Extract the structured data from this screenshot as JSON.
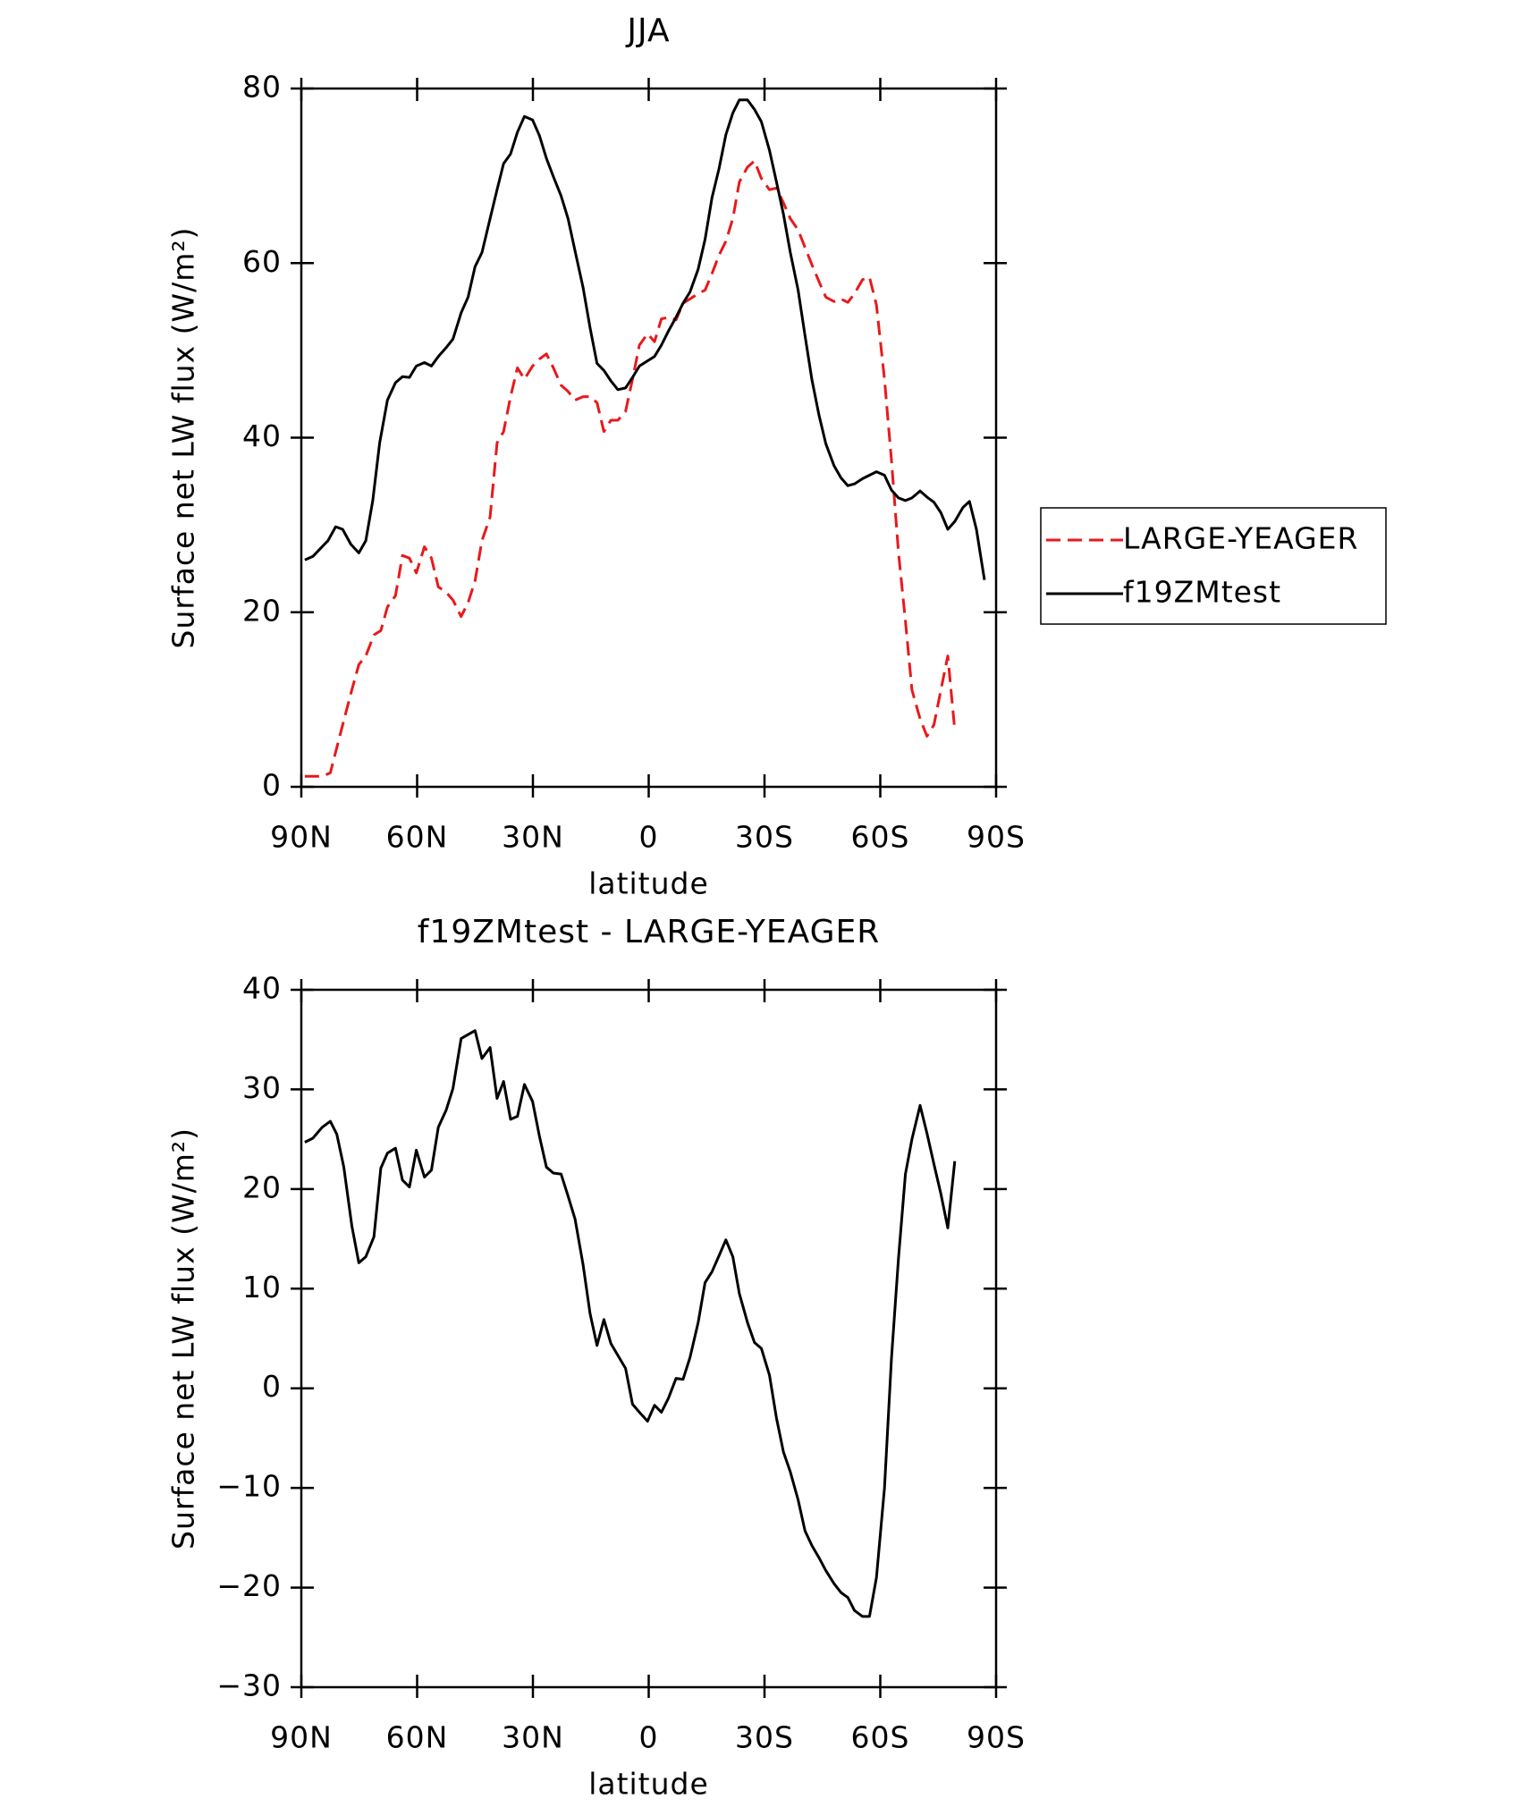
{
  "chart_data": [
    {
      "type": "line",
      "title": "JJA",
      "x_label": "latitude",
      "y_label": "Surface net LW flux (W/m²)",
      "xlim": [
        90,
        -90
      ],
      "xticks": [
        {
          "value": 90,
          "label": "90N"
        },
        {
          "value": 60,
          "label": "60N"
        },
        {
          "value": 30,
          "label": "30N"
        },
        0,
        {
          "value": -30,
          "label": "30S"
        },
        {
          "value": -60,
          "label": "60S"
        },
        {
          "value": -90,
          "label": "90S"
        }
      ],
      "ylim": [
        0,
        80
      ],
      "yticks": [
        0,
        20,
        40,
        60,
        80
      ],
      "legend": "right",
      "series": [
        {
          "name": "LARGE-YEAGER",
          "color": "#e8191c",
          "line_style": "dashed",
          "x": [
            89.1,
            87.0,
            84.6,
            82.5,
            80.8,
            79.0,
            76.9,
            75.1,
            73.3,
            71.2,
            69.4,
            67.7,
            65.6,
            63.8,
            62.0,
            60.2,
            58.1,
            56.3,
            54.5,
            52.5,
            50.7,
            48.6,
            46.8,
            45.0,
            43.2,
            41.1,
            39.3,
            37.6,
            35.8,
            34.0,
            32.2,
            30.1,
            28.3,
            26.5,
            24.7,
            22.7,
            20.9,
            19.1,
            17.0,
            15.2,
            13.4,
            11.6,
            9.8,
            8.0,
            6.0,
            4.2,
            2.4,
            0.3,
            -1.5,
            -3.3,
            -5.1,
            -7.1,
            -8.9,
            -10.7,
            -12.8,
            -14.6,
            -16.4,
            -18.2,
            -20.0,
            -21.8,
            -23.5,
            -25.6,
            -27.4,
            -29.2,
            -31.3,
            -33.1,
            -34.9,
            -36.7,
            -38.7,
            -40.5,
            -42.3,
            -44.1,
            -45.9,
            -48.0,
            -49.8,
            -51.6,
            -53.3,
            -55.4,
            -57.2,
            -59.0,
            -61.1,
            -62.9,
            -64.7,
            -66.5,
            -68.2,
            -70.3,
            -72.1,
            -73.9,
            -75.7,
            -77.5,
            -79.3
          ],
          "values": [
            1.2,
            1.2,
            1.2,
            1.6,
            4.5,
            7.6,
            11.1,
            14,
            15,
            17.4,
            17.9,
            20.6,
            21.9,
            26.5,
            26.2,
            24.5,
            27.5,
            26.2,
            22.9,
            22.3,
            21.4,
            19.5,
            21.1,
            23.6,
            28.2,
            30.9,
            39.4,
            40.7,
            44.7,
            48,
            46.7,
            48.2,
            49,
            49.6,
            48,
            46,
            45.3,
            44.3,
            44.7,
            44.7,
            44,
            40.7,
            42,
            42,
            43,
            46.7,
            50.6,
            51.9,
            51,
            53.6,
            53.8,
            53.5,
            55.4,
            55.9,
            56.5,
            56.9,
            58.8,
            60.9,
            62.5,
            65.1,
            69.3,
            71,
            71.7,
            69.7,
            68.4,
            68.6,
            66.9,
            65.1,
            63.8,
            61.8,
            59.8,
            57.9,
            56.1,
            55.6,
            55.9,
            55.5,
            56.5,
            58.1,
            58.4,
            55.2,
            46.7,
            37.4,
            26.9,
            19,
            11.1,
            7.8,
            5.8,
            7.1,
            11.1,
            15,
            6.5
          ]
        },
        {
          "name": "f19ZMtest",
          "color": "#000000",
          "line_style": "solid",
          "x": [
            89.1,
            87.0,
            83.1,
            81.1,
            79.3,
            77.2,
            75.1,
            73.3,
            71.5,
            69.7,
            67.7,
            65.6,
            63.8,
            62.0,
            60.2,
            58.1,
            56.3,
            54.5,
            52.5,
            50.7,
            48.6,
            46.8,
            45.0,
            43.2,
            41.1,
            39.3,
            37.6,
            35.8,
            34.0,
            32.2,
            30.1,
            28.3,
            26.5,
            24.7,
            22.7,
            20.9,
            19.1,
            17.0,
            15.2,
            13.4,
            11.6,
            9.8,
            8.0,
            6.0,
            4.2,
            2.4,
            0.3,
            -1.5,
            -3.3,
            -5.1,
            -7.1,
            -8.9,
            -10.7,
            -12.8,
            -14.6,
            -16.4,
            -18.2,
            -20.0,
            -21.8,
            -23.5,
            -25.6,
            -27.4,
            -29.2,
            -31.3,
            -33.1,
            -34.9,
            -36.7,
            -38.7,
            -40.5,
            -42.3,
            -44.1,
            -45.9,
            -48.0,
            -49.8,
            -51.6,
            -53.3,
            -55.4,
            -57.2,
            -59.0,
            -61.1,
            -62.9,
            -64.7,
            -66.5,
            -68.2,
            -70.3,
            -72.1,
            -73.9,
            -75.7,
            -77.5,
            -79.3,
            -81.4,
            -83.1,
            -84.9,
            -87.0
          ],
          "values": [
            26,
            26.4,
            28.2,
            29.8,
            29.5,
            27.8,
            26.8,
            28.2,
            32.8,
            39.4,
            44.3,
            46.3,
            47,
            46.9,
            48.2,
            48.6,
            48.2,
            49.3,
            50.3,
            51.3,
            54.3,
            56.1,
            59.6,
            61.2,
            65.1,
            68.4,
            71.4,
            72.5,
            75,
            76.8,
            76.4,
            74.6,
            72,
            69.9,
            67.7,
            65.1,
            61.4,
            57.2,
            52.6,
            48.5,
            47.7,
            46.5,
            45.5,
            45.7,
            46.9,
            48.2,
            48.8,
            49.3,
            50.6,
            52.2,
            53.8,
            55.4,
            56.7,
            59.3,
            62.7,
            67.5,
            70.8,
            74.7,
            77.2,
            78.7,
            78.7,
            77.6,
            76.2,
            72.9,
            69.3,
            65.6,
            61.2,
            56.9,
            51.7,
            46.6,
            42.6,
            39.3,
            36.8,
            35.4,
            34.5,
            34.7,
            35.3,
            35.7,
            36.1,
            35.7,
            34,
            33.1,
            32.8,
            33.1,
            33.9,
            33.2,
            32.6,
            31.4,
            29.5,
            30.4,
            32,
            32.7,
            29.5,
            23.7
          ]
        }
      ]
    },
    {
      "type": "line",
      "title": "f19ZMtest - LARGE-YEAGER",
      "x_label": "latitude",
      "y_label": "Surface net LW flux (W/m²)",
      "xlim": [
        90,
        -90
      ],
      "xticks": [
        {
          "value": 90,
          "label": "90N"
        },
        {
          "value": 60,
          "label": "60N"
        },
        {
          "value": 30,
          "label": "30N"
        },
        0,
        {
          "value": -30,
          "label": "30S"
        },
        {
          "value": -60,
          "label": "60S"
        },
        {
          "value": -90,
          "label": "90S"
        }
      ],
      "ylim": [
        -30,
        40
      ],
      "yticks": [
        {
          "value": -30,
          "label": "−30"
        },
        {
          "value": -20,
          "label": "−20"
        },
        {
          "value": -10,
          "label": "−10"
        },
        0,
        10,
        20,
        30,
        40
      ],
      "series": [
        {
          "color": "#000000",
          "line_style": "solid",
          "x": [
            89.1,
            87.0,
            84.6,
            82.5,
            80.8,
            79.0,
            76.9,
            75.1,
            73.3,
            71.2,
            69.4,
            67.7,
            65.6,
            63.8,
            62.0,
            60.2,
            58.1,
            56.3,
            54.5,
            52.5,
            50.7,
            48.6,
            46.8,
            45.0,
            43.2,
            41.1,
            39.3,
            37.6,
            35.8,
            34.0,
            32.2,
            30.1,
            28.3,
            26.5,
            24.7,
            22.7,
            20.9,
            19.1,
            17.0,
            15.2,
            13.4,
            11.6,
            9.8,
            8.0,
            6.0,
            4.2,
            2.4,
            0.3,
            -1.5,
            -3.3,
            -5.1,
            -7.1,
            -8.9,
            -10.7,
            -12.8,
            -14.6,
            -16.4,
            -18.2,
            -20.0,
            -21.8,
            -23.5,
            -25.6,
            -27.4,
            -29.2,
            -31.3,
            -33.1,
            -34.9,
            -36.7,
            -38.7,
            -40.5,
            -42.3,
            -44.1,
            -45.9,
            -48.0,
            -49.8,
            -51.6,
            -53.3,
            -55.4,
            -57.2,
            -59.0,
            -61.1,
            -62.9,
            -64.7,
            -66.5,
            -68.2,
            -70.3,
            -72.1,
            -73.9,
            -75.7,
            -77.5,
            -79.3
          ],
          "values": [
            24.7,
            25.1,
            26.2,
            26.8,
            25.5,
            22.2,
            16.3,
            12.6,
            13.2,
            15.2,
            22.1,
            23.6,
            24.1,
            20.9,
            20.2,
            23.9,
            21.2,
            21.9,
            26.2,
            27.9,
            30.1,
            35.1,
            35.5,
            35.9,
            33.1,
            34.2,
            29.1,
            30.8,
            27,
            27.3,
            30.5,
            28.8,
            25.3,
            22.2,
            21.6,
            21.5,
            19.3,
            17,
            12.4,
            7.5,
            4.3,
            6.9,
            4.5,
            3.3,
            2,
            -1.6,
            -2.4,
            -3.3,
            -1.7,
            -2.4,
            -1,
            1,
            0.9,
            3.1,
            6.6,
            10.6,
            11.7,
            13.3,
            14.9,
            13.2,
            9.5,
            6.6,
            4.6,
            4,
            1.3,
            -3,
            -6.4,
            -8.4,
            -11.2,
            -14.3,
            -15.8,
            -17,
            -18.3,
            -19.6,
            -20.5,
            -21,
            -22.3,
            -22.9,
            -22.9,
            -19,
            -10,
            3,
            13,
            21.5,
            25,
            28.4,
            25.6,
            22.5,
            19.5,
            16.1,
            22.8
          ]
        }
      ]
    }
  ]
}
